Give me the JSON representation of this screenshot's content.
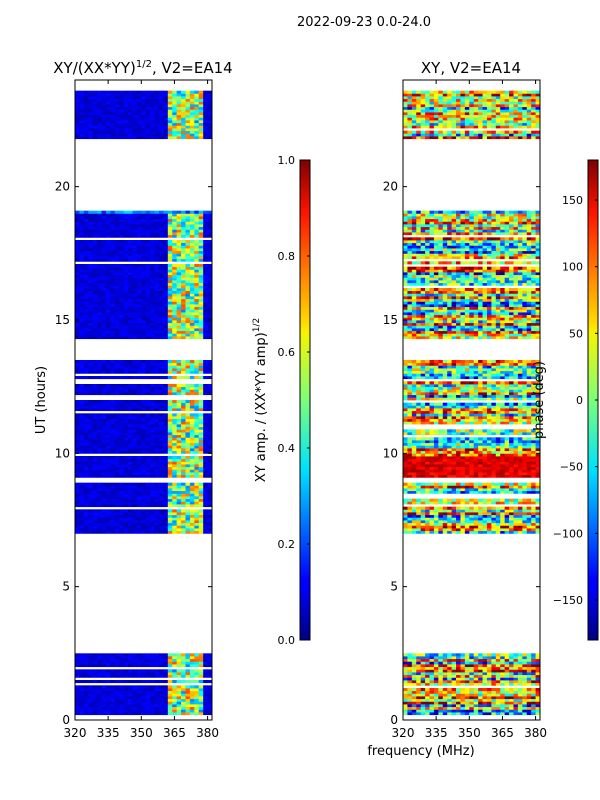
{
  "suptitle": "2022-09-23 0.0-24.0",
  "xlabel_shared": "frequency (MHz)",
  "chart_data": [
    {
      "type": "heatmap",
      "title": "XY/(XX*YY)",
      "title_sup": "1/2",
      "title_suffix": ", V2=EA14",
      "ylabel": "UT (hours)",
      "xlim": [
        320,
        382
      ],
      "ylim": [
        0,
        24
      ],
      "xticks": [
        320,
        335,
        350,
        365,
        380
      ],
      "yticks": [
        0,
        5,
        10,
        15,
        20
      ],
      "cmap": "jet",
      "data_hour_ranges": [
        [
          0.2,
          2.5
        ],
        [
          6.9,
          8.8
        ],
        [
          8.9,
          13.4
        ],
        [
          14.2,
          19.1
        ],
        [
          21.8,
          23.6
        ]
      ],
      "colorbar": {
        "label": "XY amp. / (XX*YY amp)",
        "label_sup": "1/2",
        "range": [
          0.0,
          1.0
        ],
        "ticks": [
          "0.0",
          "0.2",
          "0.4",
          "0.6",
          "0.8",
          "1.0"
        ]
      }
    },
    {
      "type": "heatmap",
      "title": "XY, V2=EA14",
      "xlim": [
        320,
        382
      ],
      "ylim": [
        0,
        24
      ],
      "xticks": [
        320,
        335,
        350,
        365,
        380
      ],
      "yticks": [
        0,
        5,
        10,
        15,
        20
      ],
      "cmap": "jet",
      "data_hour_ranges": [
        [
          0.2,
          2.5
        ],
        [
          6.9,
          8.8
        ],
        [
          8.9,
          13.4
        ],
        [
          14.2,
          19.1
        ],
        [
          21.8,
          23.6
        ]
      ],
      "colorbar": {
        "label": "phase (deg)",
        "range": [
          -180,
          180
        ],
        "ticks": [
          "−150",
          "−100",
          "−50",
          "0",
          "50",
          "100",
          "150"
        ]
      }
    }
  ]
}
